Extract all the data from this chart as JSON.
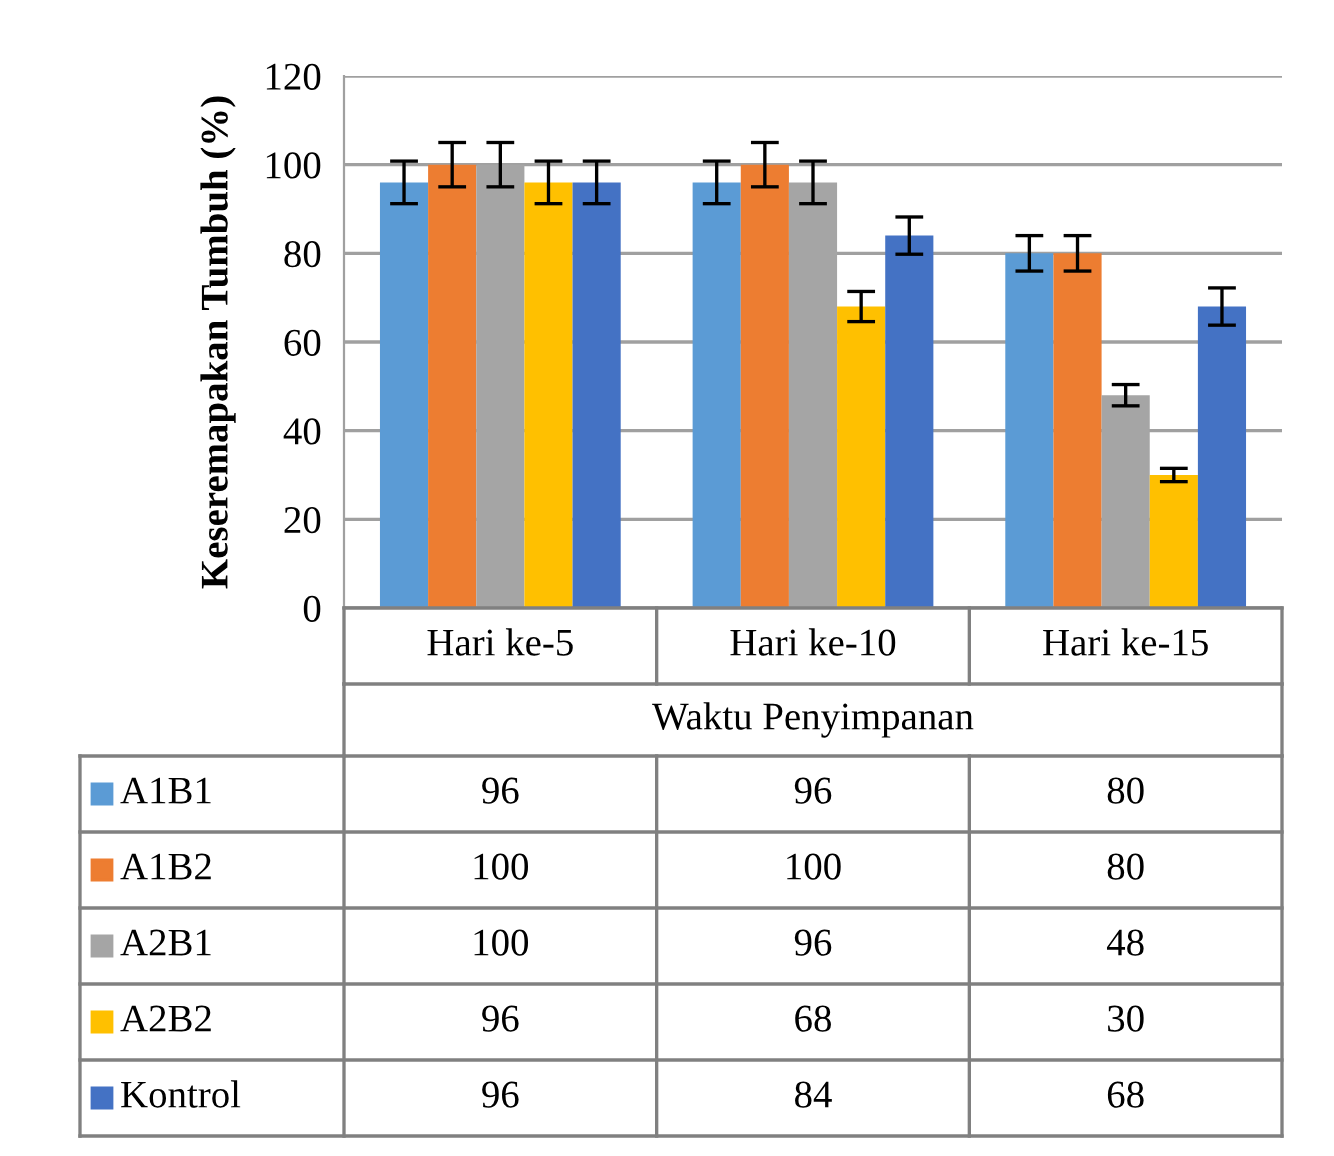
{
  "chart_data": {
    "type": "bar",
    "ylabel": "Keseremapakan Tumbuh (%)",
    "xlabel": "Waktu Penyimpanan",
    "categories": [
      "Hari ke-5",
      "Hari ke-10",
      "Hari ke-15"
    ],
    "series": [
      {
        "name": "A1B1",
        "color": "#5b9bd5",
        "values": [
          96,
          96,
          80
        ],
        "errors": [
          4.8,
          4.8,
          4
        ]
      },
      {
        "name": "A1B2",
        "color": "#ed7d31",
        "values": [
          100,
          100,
          80
        ],
        "errors": [
          5,
          5,
          4
        ]
      },
      {
        "name": "A2B1",
        "color": "#a5a5a5",
        "values": [
          100,
          96,
          48
        ],
        "errors": [
          5,
          4.8,
          2.4
        ]
      },
      {
        "name": "A2B2",
        "color": "#ffc000",
        "values": [
          96,
          68,
          30
        ],
        "errors": [
          4.8,
          3.4,
          1.5
        ]
      },
      {
        "name": "Kontrol",
        "color": "#4472c4",
        "values": [
          96,
          84,
          68
        ],
        "errors": [
          4.8,
          4.2,
          4.2
        ]
      }
    ],
    "ylim": [
      0,
      120
    ],
    "yticks": [
      0,
      20,
      40,
      60,
      80,
      100,
      120
    ],
    "grid": "y",
    "legend": "bottom",
    "data_labels": true
  }
}
